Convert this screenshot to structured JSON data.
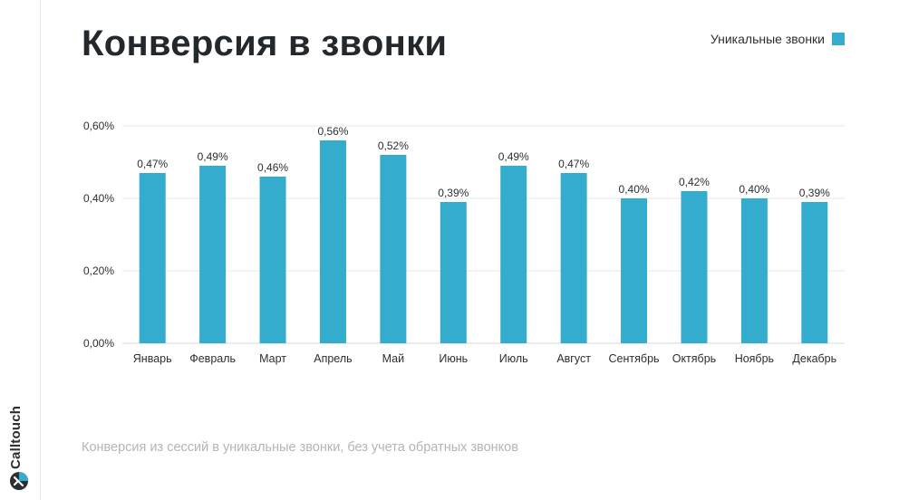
{
  "brand": {
    "name": "Calltouch"
  },
  "title": "Конверсия в звонки",
  "legend": {
    "label": "Уникальные звонки"
  },
  "caption": "Конверсия из сессий в уникальные звонки, без учета обратных звонков",
  "colors": {
    "bar": "#33acce",
    "grid": "#e6e8ea",
    "text": "#2b2f33",
    "caption": "#b0b5ba",
    "brand_accent": "#33acce"
  },
  "chart_data": {
    "type": "bar",
    "title": "Конверсия в звонки",
    "xlabel": "",
    "ylabel": "",
    "ylim": [
      0,
      0.6
    ],
    "yticks": [
      0,
      0.2,
      0.4,
      0.6
    ],
    "ytick_labels": [
      "0,00%",
      "0,20%",
      "0,40%",
      "0,60%"
    ],
    "grid": true,
    "legend_position": "top-right",
    "categories": [
      "Январь",
      "Февраль",
      "Март",
      "Апрель",
      "Май",
      "Июнь",
      "Июль",
      "Август",
      "Сентябрь",
      "Октябрь",
      "Ноябрь",
      "Декабрь"
    ],
    "series": [
      {
        "name": "Уникальные звонки",
        "values": [
          0.47,
          0.49,
          0.46,
          0.56,
          0.52,
          0.39,
          0.49,
          0.47,
          0.4,
          0.42,
          0.4,
          0.39
        ],
        "labels": [
          "0,47%",
          "0,49%",
          "0,46%",
          "0,56%",
          "0,52%",
          "0,39%",
          "0,49%",
          "0,47%",
          "0,40%",
          "0,42%",
          "0,40%",
          "0,39%"
        ]
      }
    ]
  }
}
